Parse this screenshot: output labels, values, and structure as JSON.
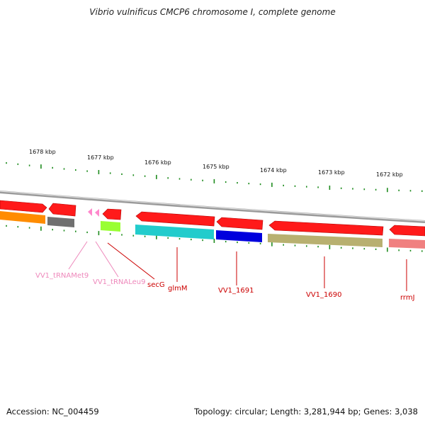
{
  "title": "Vibrio vulnificus CMCP6 chromosome I, complete genome",
  "footer": {
    "accession": "Accession: NC_004459",
    "summary": "Topology: circular; Length: 3,281,944 bp; Genes: 3,038"
  },
  "colors": {
    "tick": "#1e8c1e",
    "backbone": "#8a8a8a",
    "gene_red": "#ff1a1a",
    "label_red": "#cc0000",
    "label_pink": "#ee88bb",
    "trna_pink": "#ff88cc"
  },
  "scale": {
    "unit": "kbp",
    "labels": [
      "1678 kbp",
      "1677 kbp",
      "1676 kbp",
      "1675 kbp",
      "1674 kbp",
      "1673 kbp",
      "1672 kbp"
    ]
  },
  "genes": [
    {
      "name": "",
      "color": "#ff1a1a",
      "strand": "top"
    },
    {
      "name": "",
      "color": "#ff1a1a",
      "strand": "top"
    },
    {
      "name": "VV1_tRNAMet9",
      "color": "#ff88cc",
      "strand": "top",
      "label_color": "#ee88bb"
    },
    {
      "name": "VV1_tRNALeu9",
      "color": "#ff88cc",
      "strand": "top",
      "label_color": "#ee88bb"
    },
    {
      "name": "secG",
      "color": "#ff1a1a",
      "strand": "top",
      "label_color": "#cc0000"
    },
    {
      "name": "glmM",
      "color": "#ff1a1a",
      "strand": "top",
      "label_color": "#cc0000"
    },
    {
      "name": "VV1_1691",
      "color": "#ff1a1a",
      "strand": "top",
      "label_color": "#cc0000"
    },
    {
      "name": "VV1_1690",
      "color": "#ff1a1a",
      "strand": "top",
      "label_color": "#cc0000"
    },
    {
      "name": "rrmJ",
      "color": "#ff1a1a",
      "strand": "top",
      "label_color": "#cc0000"
    }
  ],
  "features": [
    {
      "color": "#ff8c00"
    },
    {
      "color": "#707070"
    },
    {
      "color": "#99ff33"
    },
    {
      "color": "#22cccc"
    },
    {
      "color": "#0000dd"
    },
    {
      "color": "#b8b070"
    },
    {
      "color": "#f08080"
    }
  ]
}
